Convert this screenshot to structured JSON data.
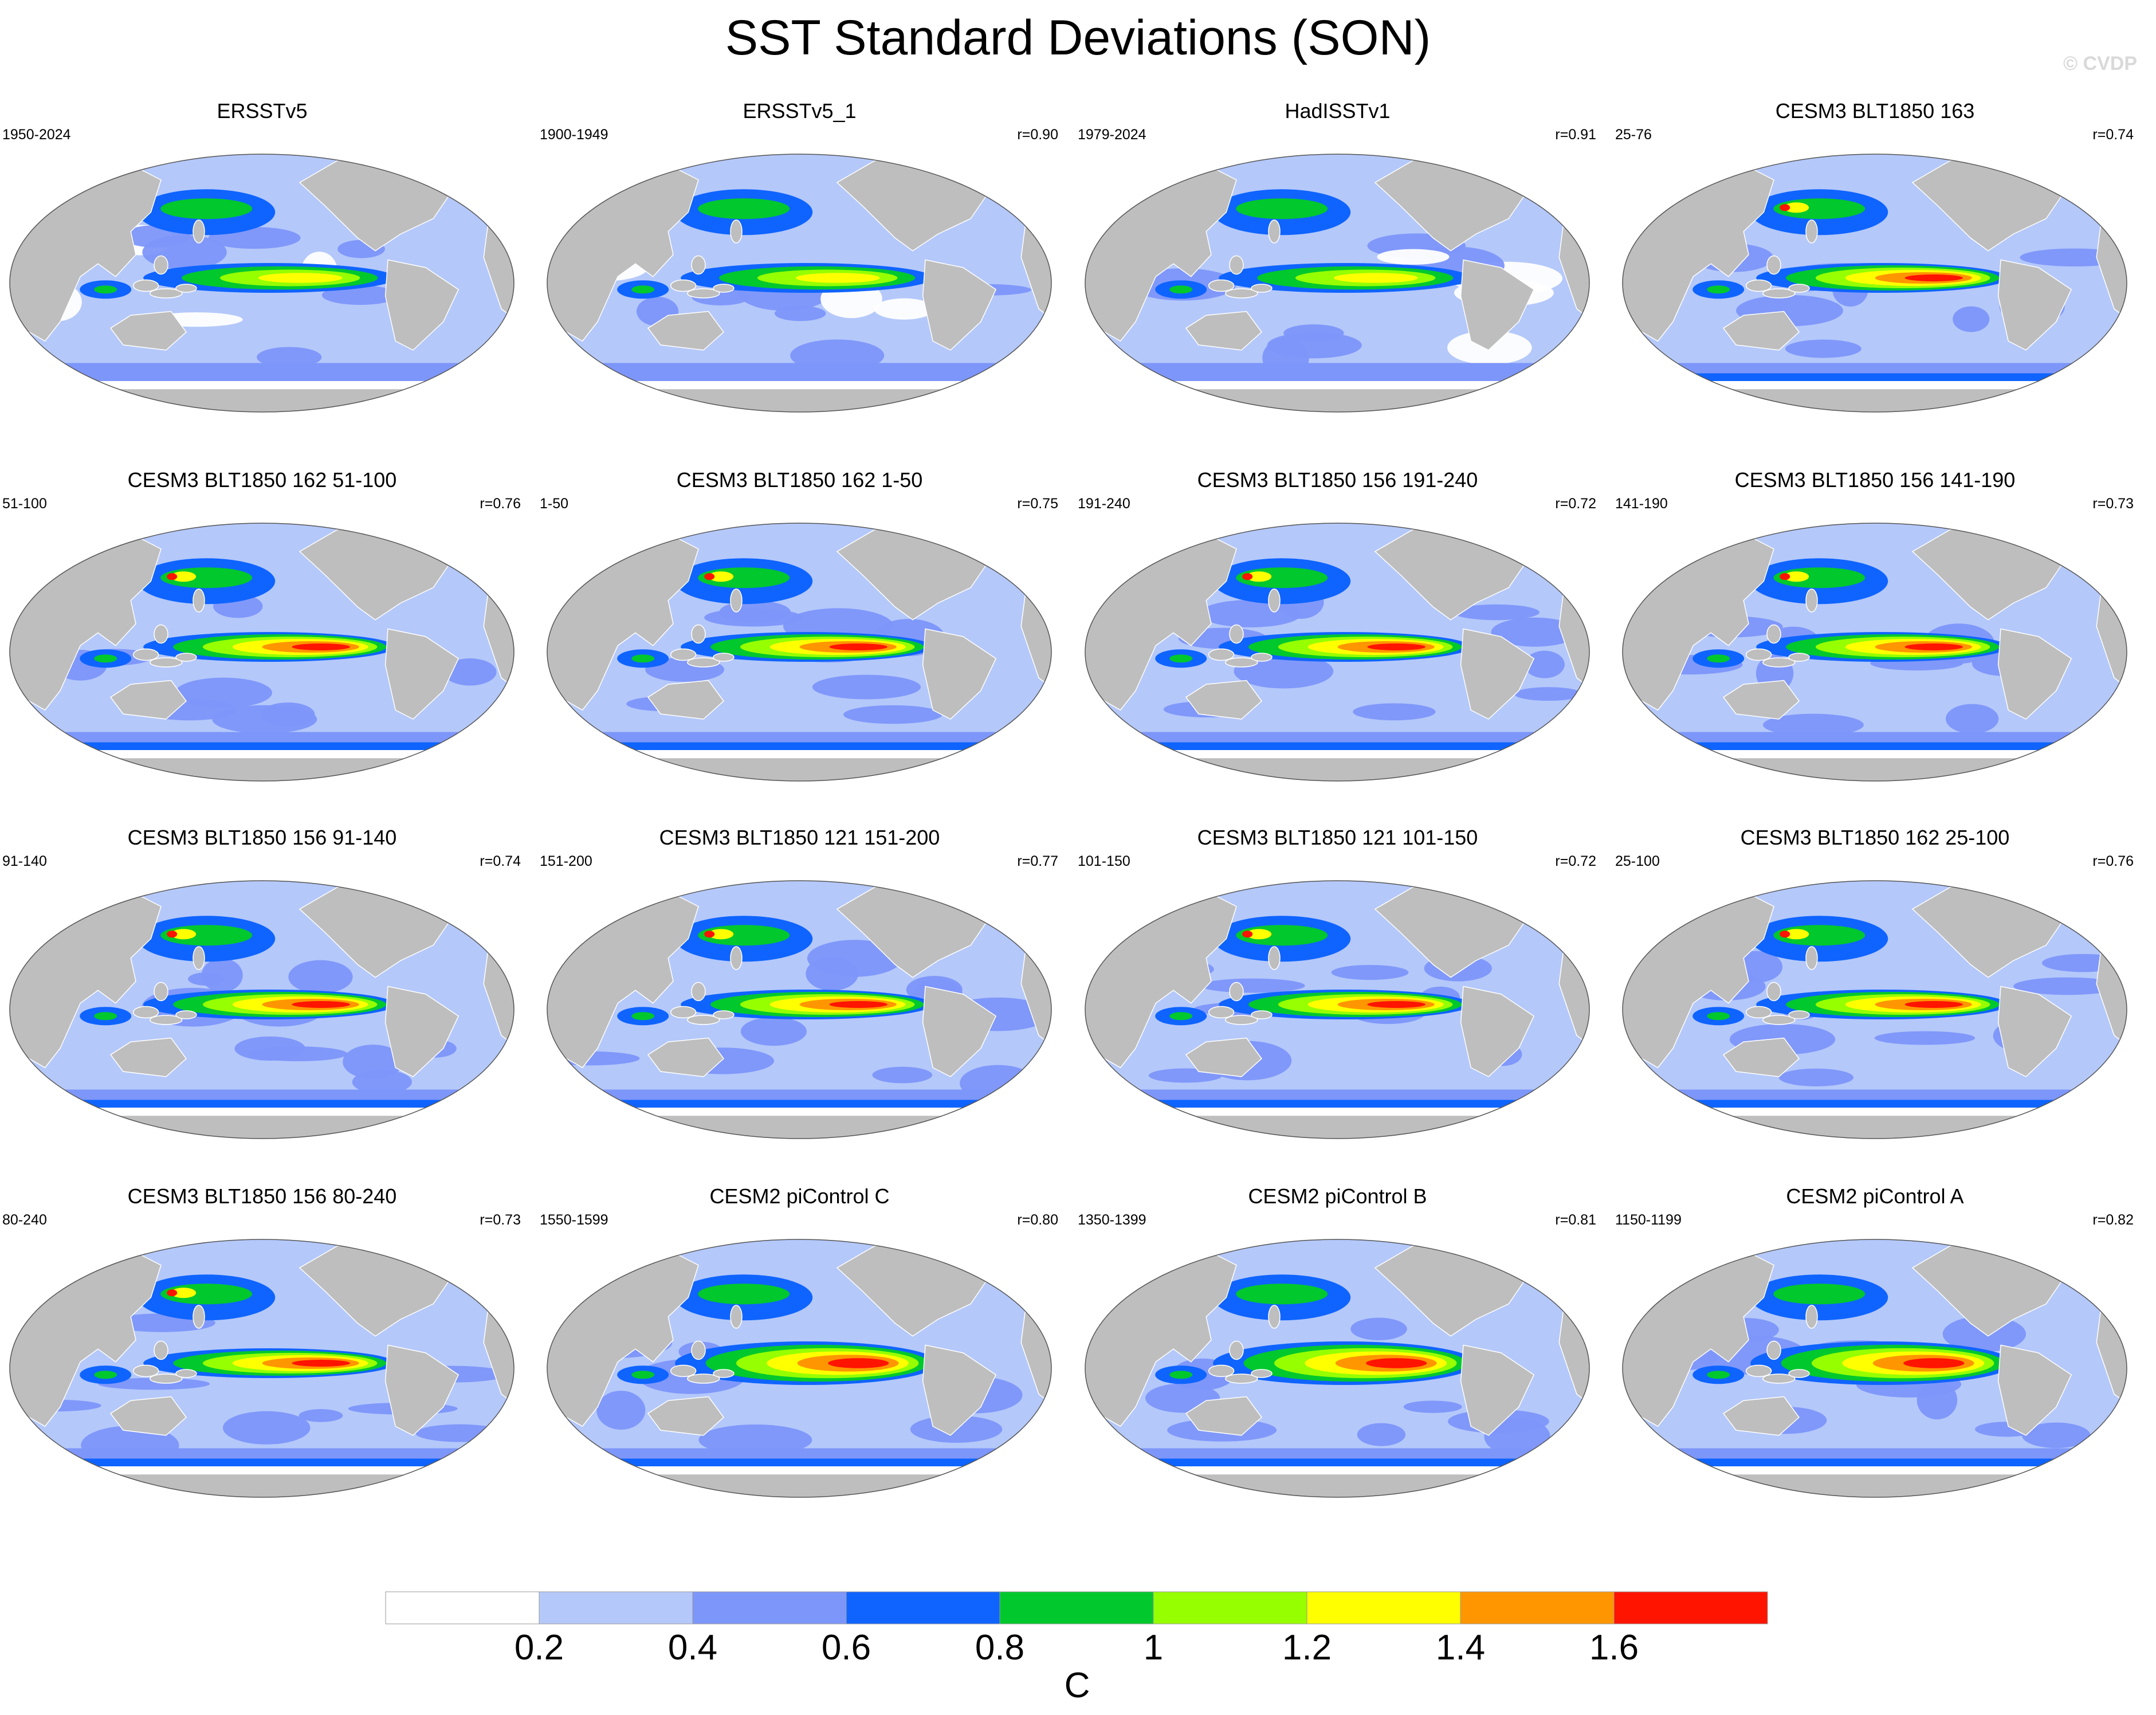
{
  "figure": {
    "title": "SST Standard Deviations (SON)",
    "watermark": "© CVDP"
  },
  "chart_data": {
    "type": "heatmap",
    "title": "SST Standard Deviations (SON)",
    "projection": "Robinson (Pacific-centered global map)",
    "variable": "SST standard deviation",
    "units": "C",
    "season": "SON",
    "panels": [
      {
        "title": "ERSSTv5",
        "years": "1950-2024",
        "r": ""
      },
      {
        "title": "ERSSTv5_1",
        "years": "1900-1949",
        "r": "r=0.90"
      },
      {
        "title": "HadISSTv1",
        "years": "1979-2024",
        "r": "r=0.91"
      },
      {
        "title": "CESM3 BLT1850 163",
        "years": "25-76",
        "r": "r=0.74"
      },
      {
        "title": "CESM3 BLT1850 162 51-100",
        "years": "51-100",
        "r": "r=0.76"
      },
      {
        "title": "CESM3 BLT1850 162 1-50",
        "years": "1-50",
        "r": "r=0.75"
      },
      {
        "title": "CESM3 BLT1850 156 191-240",
        "years": "191-240",
        "r": "r=0.72"
      },
      {
        "title": "CESM3 BLT1850 156 141-190",
        "years": "141-190",
        "r": "r=0.73"
      },
      {
        "title": "CESM3 BLT1850 156 91-140",
        "years": "91-140",
        "r": "r=0.74"
      },
      {
        "title": "CESM3 BLT1850 121 151-200",
        "years": "151-200",
        "r": "r=0.77"
      },
      {
        "title": "CESM3 BLT1850 121 101-150",
        "years": "101-150",
        "r": "r=0.72"
      },
      {
        "title": "CESM3 BLT1850 162 25-100",
        "years": "25-100",
        "r": "r=0.76"
      },
      {
        "title": "CESM3 BLT1850 156 80-240",
        "years": "80-240",
        "r": "r=0.73"
      },
      {
        "title": "CESM2 piControl C",
        "years": "1550-1599",
        "r": "r=0.80"
      },
      {
        "title": "CESM2 piControl B",
        "years": "1350-1399",
        "r": "r=0.81"
      },
      {
        "title": "CESM2 piControl A",
        "years": "1150-1199",
        "r": "r=0.82"
      }
    ],
    "colorbar": {
      "levels": [
        "0.2",
        "0.4",
        "0.6",
        "0.8",
        "1",
        "1.2",
        "1.4",
        "1.6"
      ],
      "colors": [
        "#ffffff",
        "#b4c8fa",
        "#7d96fa",
        "#0f64ff",
        "#00c82d",
        "#96ff00",
        "#ffff00",
        "#ff9600",
        "#ff1400"
      ],
      "label": "C"
    }
  },
  "style": {
    "land_color": "#bebebe",
    "coast_color": "#ffffff",
    "ocean_base": "#b4c8fa"
  }
}
